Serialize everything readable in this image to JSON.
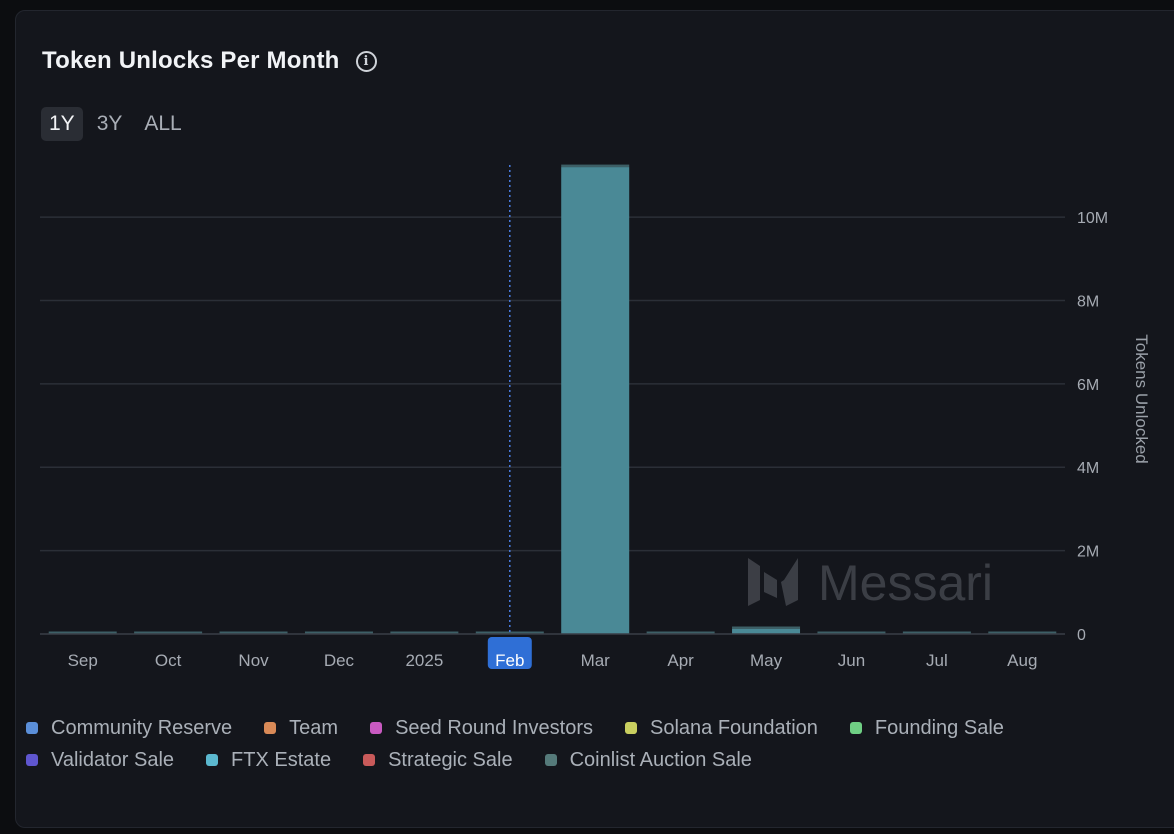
{
  "header": {
    "title": "Token Unlocks Per Month",
    "info_icon": "info-icon"
  },
  "ranges": [
    {
      "label": "1Y",
      "active": true
    },
    {
      "label": "3Y",
      "active": false
    },
    {
      "label": "ALL",
      "active": false
    }
  ],
  "watermark": "Messari",
  "chart_data": {
    "type": "bar",
    "stacked": true,
    "title": "Token Unlocks Per Month",
    "xlabel": "",
    "ylabel": "Tokens Unlocked",
    "ylim": [
      0,
      11250000
    ],
    "yticks": [
      0,
      2000000,
      4000000,
      6000000,
      8000000,
      10000000
    ],
    "ytick_labels": [
      "0",
      "2M",
      "4M",
      "6M",
      "8M",
      "10M"
    ],
    "categories": [
      "Sep",
      "Oct",
      "Nov",
      "Dec",
      "2025",
      "Feb",
      "Mar",
      "Apr",
      "May",
      "Jun",
      "Jul",
      "Aug"
    ],
    "highlighted_category": "Feb",
    "grid": true,
    "axis_position": "right",
    "series": [
      {
        "name": "Community Reserve",
        "color": "#5b8fd9",
        "values": [
          0,
          0,
          0,
          0,
          0,
          0,
          0,
          0,
          0,
          0,
          0,
          0
        ]
      },
      {
        "name": "Team",
        "color": "#d98a57",
        "values": [
          0,
          0,
          0,
          0,
          0,
          0,
          0,
          0,
          0,
          0,
          0,
          0
        ]
      },
      {
        "name": "Seed Round Investors",
        "color": "#c95ac1",
        "values": [
          0,
          0,
          0,
          0,
          0,
          0,
          0,
          0,
          0,
          0,
          0,
          0
        ]
      },
      {
        "name": "Solana Foundation",
        "color": "#c9cf5f",
        "values": [
          0,
          0,
          0,
          0,
          0,
          0,
          0,
          0,
          0,
          0,
          0,
          0
        ]
      },
      {
        "name": "Founding Sale",
        "color": "#6fcf84",
        "values": [
          0,
          0,
          0,
          0,
          0,
          0,
          0,
          0,
          0,
          0,
          0,
          0
        ]
      },
      {
        "name": "Validator Sale",
        "color": "#5f56cf",
        "values": [
          0,
          0,
          0,
          0,
          0,
          0,
          0,
          0,
          0,
          0,
          0,
          0
        ]
      },
      {
        "name": "FTX Estate",
        "color": "#5bb8cf",
        "values": [
          0,
          0,
          0,
          0,
          0,
          0,
          11200000,
          0,
          120000,
          0,
          0,
          0
        ]
      },
      {
        "name": "Strategic Sale",
        "color": "#c95a5a",
        "values": [
          0,
          0,
          0,
          0,
          0,
          0,
          0,
          0,
          0,
          0,
          0,
          0
        ]
      },
      {
        "name": "Coinlist Auction Sale",
        "color": "#557a7a",
        "values": [
          40000,
          40000,
          40000,
          40000,
          40000,
          40000,
          40000,
          40000,
          40000,
          40000,
          40000,
          40000
        ]
      }
    ]
  }
}
